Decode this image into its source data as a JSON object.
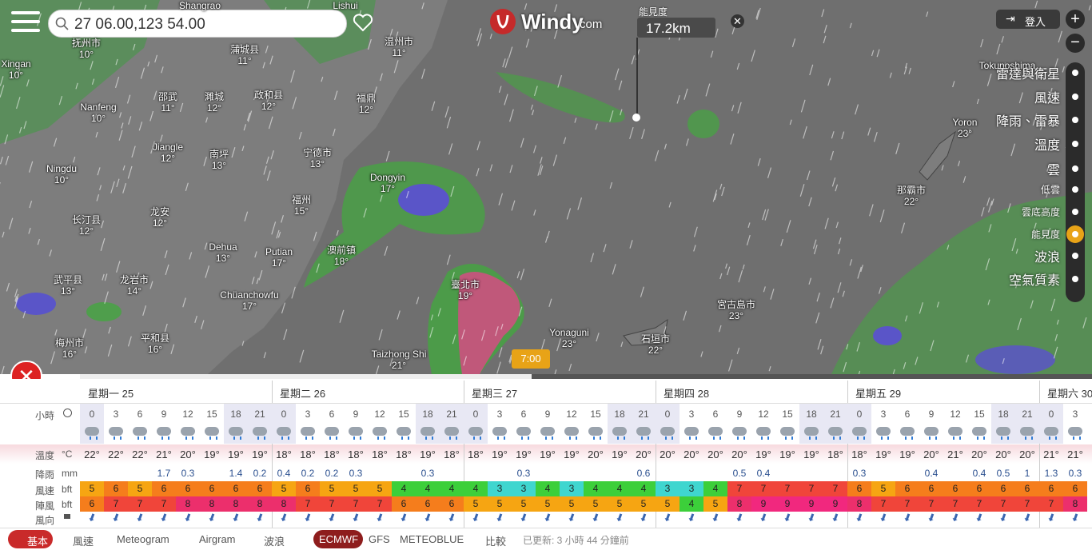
{
  "search": {
    "query": "27 06.00,123 54.00"
  },
  "logo": {
    "name": "Windy",
    "suffix": "com"
  },
  "visibility_popup": {
    "label": "能見度",
    "value": "17.2km"
  },
  "login": "登入",
  "layers": [
    "雷達與衛星",
    "風速",
    "降雨、雷暴",
    "溫度",
    "雲",
    "低雲",
    "雲底高度",
    "能見度",
    "波浪",
    "空氣質素"
  ],
  "map_labels": [
    {
      "name": "Shangrao"
    },
    {
      "name": "Lishui"
    },
    {
      "name": "抚州市",
      "temp": "10°"
    },
    {
      "name": "Xingan",
      "temp": "10°"
    },
    {
      "name": "蒲城县",
      "temp": "11°"
    },
    {
      "name": "温州市",
      "temp": "11°"
    },
    {
      "name": "Nanfeng",
      "temp": "10°"
    },
    {
      "name": "邵武",
      "temp": "11°"
    },
    {
      "name": "濉城",
      "temp": "12°"
    },
    {
      "name": "政和县",
      "temp": "12°"
    },
    {
      "name": "福鼎",
      "temp": "12°"
    },
    {
      "name": "Jiangle",
      "temp": "12°"
    },
    {
      "name": "南坪",
      "temp": "13°"
    },
    {
      "name": "宁德市",
      "temp": "13°"
    },
    {
      "name": "Ningdu",
      "temp": "10°"
    },
    {
      "name": "Dongyin",
      "temp": "17°"
    },
    {
      "name": "长汀县",
      "temp": "12°"
    },
    {
      "name": "龙安",
      "temp": "12°"
    },
    {
      "name": "福州",
      "temp": "15°"
    },
    {
      "name": "Dehua",
      "temp": "13°"
    },
    {
      "name": "Putian",
      "temp": "17°"
    },
    {
      "name": "澳前镇",
      "temp": "18°"
    },
    {
      "name": "武平县",
      "temp": "13°"
    },
    {
      "name": "龙岩市",
      "temp": "14°"
    },
    {
      "name": "Chüanchowfu",
      "temp": "17°"
    },
    {
      "name": "臺北市",
      "temp": "19°"
    },
    {
      "name": "梅州市",
      "temp": "16°"
    },
    {
      "name": "平和县",
      "temp": "16°"
    },
    {
      "name": "Taizhong Shi",
      "temp": "21°"
    },
    {
      "name": "Yonaguni",
      "temp": "23°"
    },
    {
      "name": "石垣市",
      "temp": "22°"
    },
    {
      "name": "宮古島市",
      "temp": "23°"
    },
    {
      "name": "那霸市",
      "temp": "22°"
    },
    {
      "name": "Yoron",
      "temp": "23°"
    },
    {
      "name": "Tokunoshima"
    }
  ],
  "time_marker": "7:00",
  "forecast": {
    "days": [
      "星期一 25",
      "星期二 26",
      "星期三 27",
      "星期四 28",
      "星期五 29",
      "星期六 30"
    ],
    "hours_label": "小時",
    "hours": [
      0,
      3,
      6,
      9,
      12,
      15,
      18,
      21,
      0,
      3,
      6,
      9,
      12,
      15,
      18,
      21,
      0,
      3,
      6,
      9,
      12,
      15,
      18,
      21,
      0,
      3,
      6,
      9,
      12,
      15,
      18,
      21,
      0,
      3,
      6,
      9,
      12,
      15,
      18,
      21,
      0,
      3
    ],
    "temp_label": "溫度",
    "temp_unit": "°C",
    "temperature": [
      "22°",
      "22°",
      "22°",
      "21°",
      "20°",
      "19°",
      "19°",
      "19°",
      "18°",
      "18°",
      "18°",
      "18°",
      "18°",
      "18°",
      "19°",
      "18°",
      "18°",
      "19°",
      "19°",
      "19°",
      "19°",
      "20°",
      "19°",
      "20°",
      "20°",
      "20°",
      "20°",
      "20°",
      "19°",
      "19°",
      "19°",
      "18°",
      "18°",
      "19°",
      "19°",
      "20°",
      "21°",
      "20°",
      "20°",
      "20°",
      "21°",
      "21°"
    ],
    "rain_label": "降雨",
    "rain_unit": "mm",
    "rain": [
      null,
      null,
      null,
      1.7,
      0.3,
      null,
      1.4,
      0.2,
      0.4,
      0.2,
      0.2,
      0.3,
      null,
      null,
      0.3,
      null,
      null,
      null,
      0.3,
      null,
      null,
      null,
      null,
      0.6,
      null,
      null,
      null,
      0.5,
      0.4,
      null,
      null,
      null,
      0.3,
      null,
      null,
      0.4,
      null,
      0.4,
      0.5,
      1,
      1.3,
      0.3
    ],
    "wind_label": "風速",
    "wind_unit": "bft",
    "wind": [
      5,
      6,
      5,
      6,
      6,
      6,
      6,
      6,
      5,
      6,
      5,
      5,
      5,
      4,
      4,
      4,
      4,
      3,
      3,
      4,
      3,
      4,
      4,
      4,
      3,
      3,
      4,
      7,
      7,
      7,
      7,
      7,
      6,
      5,
      6,
      6,
      6,
      6,
      6,
      6,
      6,
      6
    ],
    "gust_label": "陣風",
    "gust_unit": "bft",
    "gust": [
      6,
      7,
      7,
      7,
      8,
      8,
      8,
      8,
      8,
      7,
      7,
      7,
      7,
      6,
      6,
      6,
      5,
      5,
      5,
      5,
      5,
      5,
      5,
      5,
      5,
      4,
      5,
      8,
      9,
      9,
      9,
      9,
      8,
      7,
      7,
      7,
      7,
      7,
      7,
      7,
      7,
      8
    ],
    "direction_label": "風向"
  },
  "bottom_bar": {
    "tabs": [
      "基本",
      "風速",
      "Meteogram",
      "Airgram",
      "波浪"
    ],
    "models": [
      "ECMWF",
      "GFS",
      "METEOBLUE",
      "比較"
    ],
    "updated": "已更新: 3 小時 44 分鐘前"
  }
}
